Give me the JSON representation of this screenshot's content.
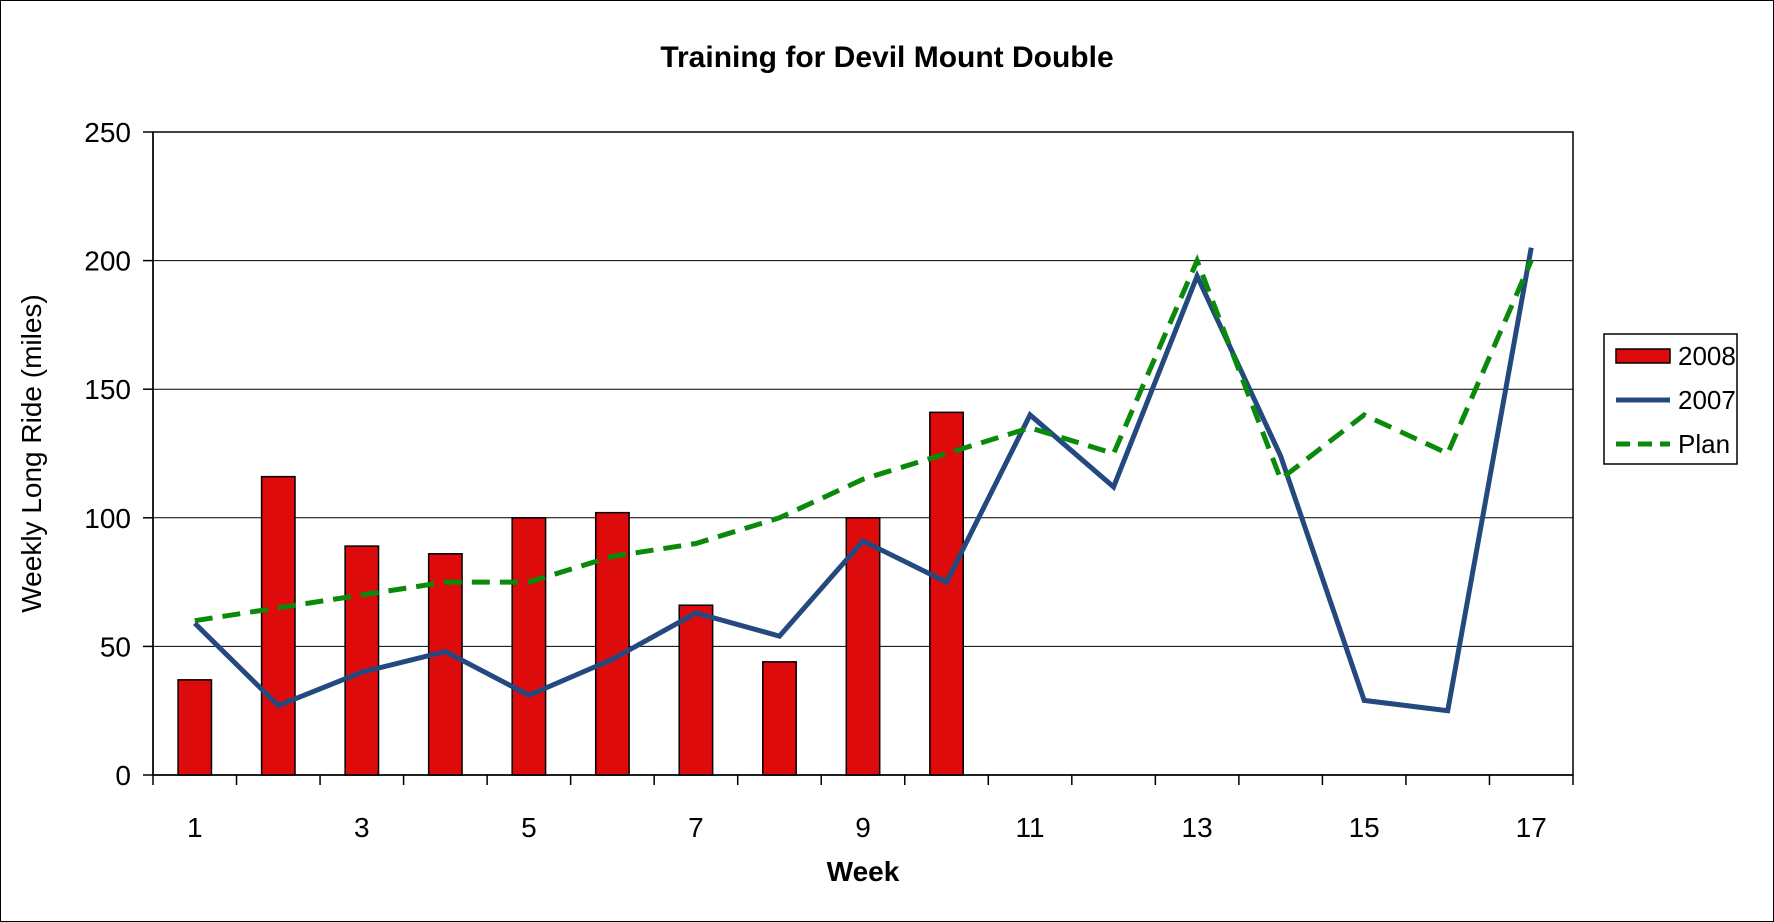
{
  "chart_data": {
    "type": "bar+line",
    "title": "Training for Devil Mount Double",
    "xlabel": "Week",
    "ylabel": "Weekly Long Ride (miles)",
    "ylim": [
      0,
      250
    ],
    "yticks": [
      0,
      50,
      100,
      150,
      200,
      250
    ],
    "x": [
      1,
      2,
      3,
      4,
      5,
      6,
      7,
      8,
      9,
      10,
      11,
      12,
      13,
      14,
      15,
      16,
      17
    ],
    "xtick_labels": [
      "1",
      "3",
      "5",
      "7",
      "9",
      "11",
      "13",
      "15",
      "17"
    ],
    "grid": "horizontal",
    "legend_position": "right",
    "series": [
      {
        "name": "2008",
        "kind": "bar",
        "color": "#DD0B0B",
        "values": [
          37,
          116,
          89,
          86,
          100,
          102,
          66,
          44,
          100,
          141,
          null,
          null,
          null,
          null,
          null,
          null,
          null
        ]
      },
      {
        "name": "2007",
        "kind": "line",
        "color": "#24497F",
        "values": [
          59,
          27,
          40,
          48,
          31,
          45,
          63,
          54,
          91,
          75,
          140,
          112,
          194,
          124,
          29,
          25,
          205
        ]
      },
      {
        "name": "Plan",
        "kind": "dashed-line",
        "color": "#0A8A0A",
        "values": [
          60,
          65,
          70,
          75,
          75,
          85,
          90,
          100,
          115,
          125,
          135,
          125,
          200,
          115,
          140,
          125,
          200
        ]
      }
    ]
  }
}
